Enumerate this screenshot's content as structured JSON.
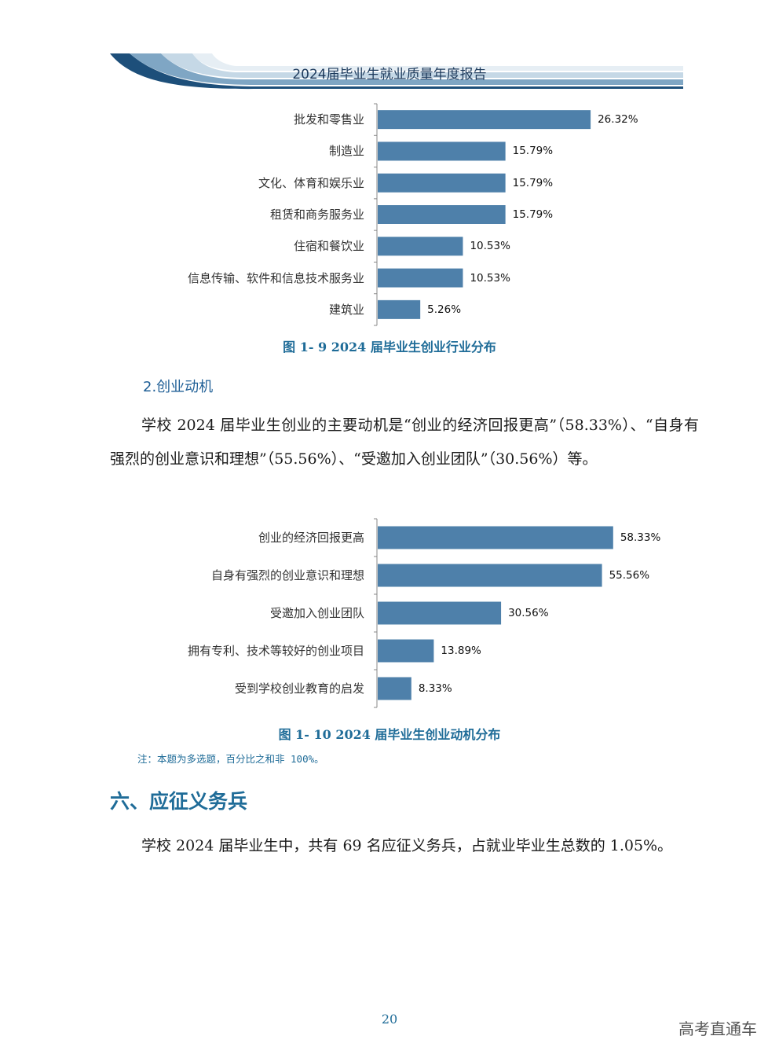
{
  "header": {
    "title": "2024届毕业生就业质量年度报告"
  },
  "charts": [
    {
      "caption": "图 1- 9  2024 届毕业生创业行业分布",
      "chart_data": {
        "type": "bar",
        "orientation": "horizontal",
        "categories": [
          "批发和零售业",
          "制造业",
          "文化、体育和娱乐业",
          "租赁和商务服务业",
          "住宿和餐饮业",
          "信息传输、软件和信息技术服务业",
          "建筑业"
        ],
        "values": [
          26.32,
          15.79,
          15.79,
          15.79,
          10.53,
          10.53,
          5.26
        ],
        "value_labels": [
          "26.32%",
          "15.79%",
          "15.79%",
          "15.79%",
          "10.53%",
          "10.53%",
          "5.26%"
        ],
        "bar_color": "#4e80aa",
        "xlim": [
          0,
          30
        ]
      }
    },
    {
      "caption": "图 1- 10  2024 届毕业生创业动机分布",
      "chart_data": {
        "type": "bar",
        "orientation": "horizontal",
        "categories": [
          "创业的经济回报更高",
          "自身有强烈的创业意识和理想",
          "受邀加入创业团队",
          "拥有专利、技术等较好的创业项目",
          "受到学校创业教育的启发"
        ],
        "values": [
          58.33,
          55.56,
          30.56,
          13.89,
          8.33
        ],
        "value_labels": [
          "58.33%",
          "55.56%",
          "30.56%",
          "13.89%",
          "8.33%"
        ],
        "bar_color": "#4e80aa",
        "xlim": [
          0,
          70
        ]
      }
    }
  ],
  "subsection": {
    "title": "2.创业动机"
  },
  "paragraph1": "学校 2024 届毕业生创业的主要动机是“创业的经济回报更高”（58.33%）、“自身有强烈的创业意识和理想”（55.56%）、“受邀加入创业团队”（30.56%）等。",
  "note": "注：本题为多选题，百分比之和非 100%。",
  "section": {
    "title": "六、应征义务兵"
  },
  "paragraph2": "学校 2024 届毕业生中，共有 69 名应征义务兵，占就业毕业生总数的 1.05%。",
  "footer": {
    "page_number": "20",
    "watermark": "高考直通车"
  },
  "colors": {
    "accent": "#1f6c98",
    "bar": "#4e80aa",
    "header_dark": "#1d4f7a"
  }
}
